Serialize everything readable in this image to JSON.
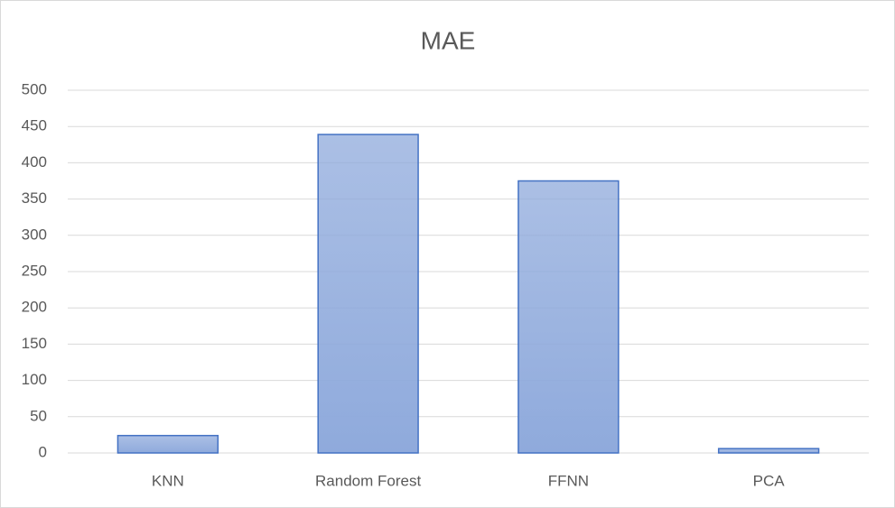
{
  "chart_data": {
    "type": "bar",
    "title": "MAE",
    "categories": [
      "KNN",
      "Random Forest",
      "FFNN",
      "PCA"
    ],
    "values": [
      24,
      439,
      375,
      6
    ],
    "color": "#8faadc",
    "edge_color": "#4472c4",
    "ylim": [
      0,
      500
    ],
    "yticks": [
      0,
      50,
      100,
      150,
      200,
      250,
      300,
      350,
      400,
      450,
      500
    ],
    "grid": true
  }
}
